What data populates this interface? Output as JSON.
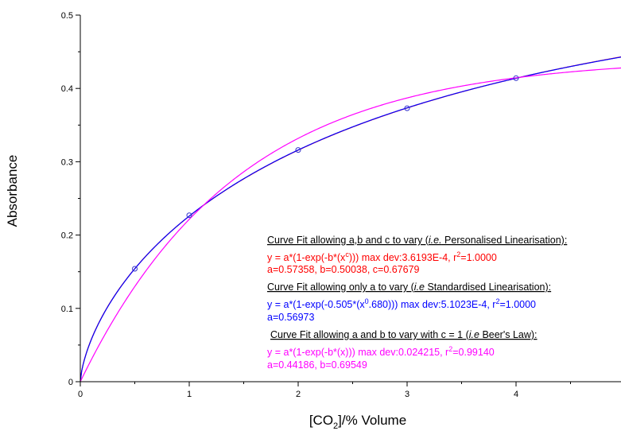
{
  "chart_data": {
    "type": "scatter",
    "xlabel": {
      "prefix": "[CO",
      "sub": "2",
      "suffix": "]/% Volume"
    },
    "ylabel": "Absorbance",
    "xlim": [
      0,
      5
    ],
    "ylim": [
      0,
      0.5
    ],
    "x_ticks": [
      0,
      1,
      2,
      3,
      4
    ],
    "x_tick_labels": [
      "0",
      "1",
      "2",
      "3",
      "4"
    ],
    "y_ticks": [
      0,
      0.1,
      0.2,
      0.3,
      0.4,
      0.5
    ],
    "y_tick_labels": [
      "0",
      "0.1",
      "0.2",
      "0.3",
      "0.4",
      "0.5"
    ],
    "grid": false,
    "points": {
      "color": "#3333cc",
      "x": [
        0.5,
        1,
        2,
        3,
        4
      ],
      "y": [
        0.154,
        0.227,
        0.316,
        0.373,
        0.414
      ]
    },
    "fits": [
      {
        "color": "#ff0000",
        "model": "personalised",
        "a": 0.57358,
        "b": 0.50038,
        "c": 0.67679
      },
      {
        "color": "#0000ff",
        "model": "standardised",
        "a": 0.56973,
        "b": 0.505,
        "c": 0.68
      },
      {
        "color": "#ff00ff",
        "model": "beers",
        "a": 0.44186,
        "b": 0.69549,
        "c": 1
      }
    ],
    "annotations": [
      {
        "kind": "heading",
        "color": "#000000",
        "parts": [
          {
            "t": "Curve Fit allowing a,b and c to vary ("
          },
          {
            "t": "i.e.",
            "i": true
          },
          {
            "t": " Personalised Linearisation):"
          }
        ]
      },
      {
        "kind": "body",
        "color": "#ff0000",
        "parts": [
          {
            "t": "y = a*(1-exp(-b*(x"
          },
          {
            "t": "c",
            "sup": true
          },
          {
            "t": "))) max dev:3.6193E-4, r"
          },
          {
            "t": "2",
            "sup": true
          },
          {
            "t": "=1.0000"
          }
        ]
      },
      {
        "kind": "body",
        "color": "#ff0000",
        "parts": [
          {
            "t": "a=0.57358, b=0.50038, c=0.67679"
          }
        ]
      },
      {
        "kind": "heading",
        "color": "#000000",
        "parts": [
          {
            "t": "Curve Fit allowing only a to vary ("
          },
          {
            "t": "i.e",
            "i": true
          },
          {
            "t": " Standardised Linearisation):"
          }
        ]
      },
      {
        "kind": "body",
        "color": "#0000ff",
        "parts": [
          {
            "t": "y = a*(1-exp(-0.505*(x"
          },
          {
            "t": "0",
            "sup": true
          },
          {
            "t": ".680))) max dev:5.1023E-4, r"
          },
          {
            "t": "2",
            "sup": true
          },
          {
            "t": "=1.0000"
          }
        ]
      },
      {
        "kind": "body",
        "color": "#0000ff",
        "parts": [
          {
            "t": "a=0.56973"
          }
        ]
      },
      {
        "kind": "heading",
        "color": "#000000",
        "parts": [
          {
            "t": "Curve Fit allowing a and b to vary with c = 1 ("
          },
          {
            "t": "i.e",
            "i": true
          },
          {
            "t": " Beer's Law):"
          }
        ]
      },
      {
        "kind": "body",
        "color": "#ff00ff",
        "parts": [
          {
            "t": "y = a*(1-exp(-b*(x))) max dev:0.024215, r"
          },
          {
            "t": "2",
            "sup": true
          },
          {
            "t": "=0.99140"
          }
        ]
      },
      {
        "kind": "body",
        "color": "#ff00ff",
        "parts": [
          {
            "t": "a=0.44186, b=0.69549"
          }
        ]
      }
    ]
  }
}
